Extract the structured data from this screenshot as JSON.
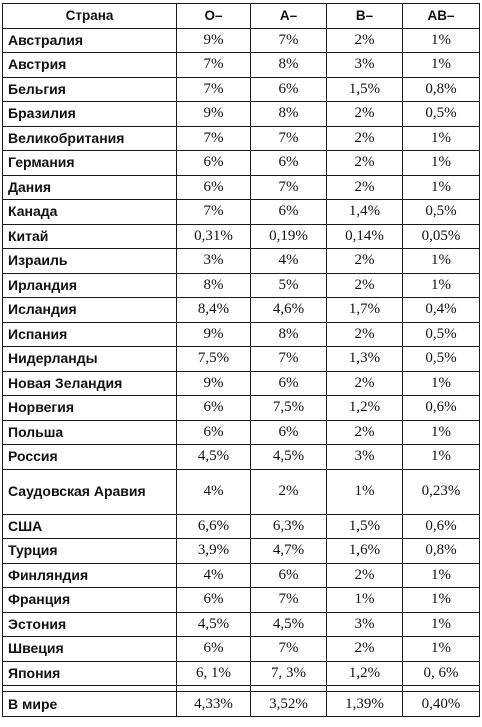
{
  "header": {
    "country": "Страна",
    "o": "O–",
    "a": "A–",
    "b": "B–",
    "ab": "AB–"
  },
  "rows": [
    {
      "country": "Австралия",
      "o": "9%",
      "a": "7%",
      "b": "2%",
      "ab": "1%"
    },
    {
      "country": "Австрия",
      "o": "7%",
      "a": "8%",
      "b": "3%",
      "ab": "1%"
    },
    {
      "country": "Бельгия",
      "o": "7%",
      "a": "6%",
      "b": "1,5%",
      "ab": "0,8%"
    },
    {
      "country": "Бразилия",
      "o": "9%",
      "a": "8%",
      "b": "2%",
      "ab": "0,5%"
    },
    {
      "country": "Великобритания",
      "o": "7%",
      "a": "7%",
      "b": "2%",
      "ab": "1%"
    },
    {
      "country": "Германия",
      "o": "6%",
      "a": "6%",
      "b": "2%",
      "ab": "1%"
    },
    {
      "country": "Дания",
      "o": "6%",
      "a": "7%",
      "b": "2%",
      "ab": "1%"
    },
    {
      "country": "Канада",
      "o": "7%",
      "a": "6%",
      "b": "1,4%",
      "ab": "0,5%"
    },
    {
      "country": "Китай",
      "o": "0,31%",
      "a": "0,19%",
      "b": "0,14%",
      "ab": "0,05%"
    },
    {
      "country": "Израиль",
      "o": "3%",
      "a": "4%",
      "b": "2%",
      "ab": "1%"
    },
    {
      "country": "Ирландия",
      "o": "8%",
      "a": "5%",
      "b": "2%",
      "ab": "1%"
    },
    {
      "country": "Исландия",
      "o": "8,4%",
      "a": "4,6%",
      "b": "1,7%",
      "ab": "0,4%"
    },
    {
      "country": "Испания",
      "o": "9%",
      "a": "8%",
      "b": "2%",
      "ab": "0,5%"
    },
    {
      "country": "Нидерланды",
      "o": "7,5%",
      "a": "7%",
      "b": "1,3%",
      "ab": "0,5%"
    },
    {
      "country": "Новая Зеландия",
      "o": "9%",
      "a": "6%",
      "b": "2%",
      "ab": "1%"
    },
    {
      "country": "Норвегия",
      "o": "6%",
      "a": "7,5%",
      "b": "1,2%",
      "ab": "0,6%"
    },
    {
      "country": "Польша",
      "o": "6%",
      "a": "6%",
      "b": "2%",
      "ab": "1%"
    },
    {
      "country": "Россия",
      "o": "4,5%",
      "a": "4,5%",
      "b": "3%",
      "ab": "1%"
    },
    {
      "country": "Саудовская Аравия",
      "o": "4%",
      "a": "2%",
      "b": "1%",
      "ab": "0,23%"
    },
    {
      "country": "США",
      "o": "6,6%",
      "a": "6,3%",
      "b": "1,5%",
      "ab": "0,6%"
    },
    {
      "country": "Турция",
      "o": "3,9%",
      "a": "4,7%",
      "b": "1,6%",
      "ab": "0,8%"
    },
    {
      "country": "Финляндия",
      "o": "4%",
      "a": "6%",
      "b": "2%",
      "ab": "1%"
    },
    {
      "country": "Франция",
      "o": "6%",
      "a": "7%",
      "b": "1%",
      "ab": "1%"
    },
    {
      "country": "Эстония",
      "o": "4,5%",
      "a": "4,5%",
      "b": "3%",
      "ab": "1%"
    },
    {
      "country": "Швеция",
      "o": "6%",
      "a": "7%",
      "b": "2%",
      "ab": "1%"
    },
    {
      "country": "Япония",
      "o": "6, 1%",
      "a": "7, 3%",
      "b": "1,2%",
      "ab": "0, 6%"
    }
  ],
  "world": {
    "country": "В мире",
    "o": "4,33%",
    "a": "3,52%",
    "b": "1,39%",
    "ab": "0,40%"
  }
}
